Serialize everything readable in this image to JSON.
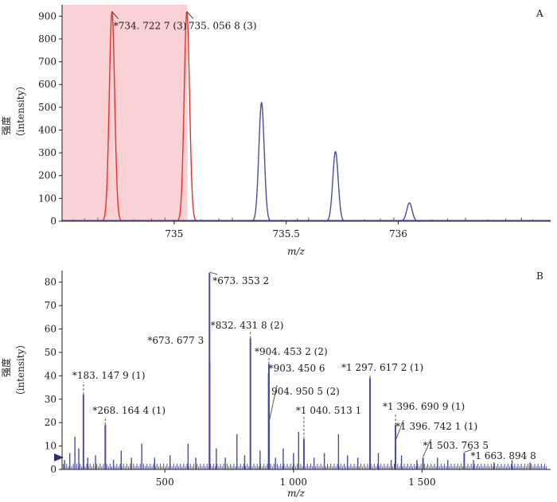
{
  "chart_data": [
    {
      "type": "line",
      "panel_label": "A",
      "xlabel": "m/z",
      "ylabel": [
        "强度",
        "（intensity）"
      ],
      "xlim": [
        734.5,
        736.68
      ],
      "ylim": [
        0,
        950
      ],
      "x_ticks": [
        735,
        735.5,
        736
      ],
      "x_tick_labels": [
        "735",
        "735.5",
        "736"
      ],
      "y_ticks": [
        0,
        100,
        200,
        300,
        400,
        500,
        600,
        700,
        800,
        900
      ],
      "highlight_range": [
        734.5,
        735.06
      ],
      "colors": {
        "highlight_fill": "#fad2d6",
        "selected": "#e8302a",
        "other": "#4a4c9c"
      },
      "peaks": [
        {
          "mz": 734.7227,
          "intensity": 920,
          "selected": true
        },
        {
          "mz": 735.0568,
          "intensity": 920,
          "selected": true
        },
        {
          "mz": 735.39,
          "intensity": 520,
          "selected": false
        },
        {
          "mz": 735.72,
          "intensity": 305,
          "selected": false
        },
        {
          "mz": 736.05,
          "intensity": 80,
          "selected": false
        }
      ],
      "annotations": [
        {
          "text": "*734. 722 7 (3)",
          "mz": 734.7227
        },
        {
          "text": "735. 056 8 (3)",
          "mz": 735.0568
        }
      ]
    },
    {
      "type": "bar",
      "panel_label": "B",
      "xlabel": "m/z",
      "ylabel": [
        "强度",
        "（intensity）"
      ],
      "xlim": [
        100,
        2000
      ],
      "ylim": [
        0,
        85
      ],
      "x_ticks": [
        500,
        1000,
        1500
      ],
      "x_tick_labels": [
        "500",
        "1 000",
        "1 500"
      ],
      "y_ticks": [
        0,
        10,
        20,
        30,
        40,
        50,
        60,
        70,
        80
      ],
      "colors": {
        "bar": "#4a4c9c"
      },
      "labeled_peaks": [
        {
          "mz": 183.1479,
          "intensity": 32,
          "label": "*183. 147 9 (1)"
        },
        {
          "mz": 268.1644,
          "intensity": 19,
          "label": "*268. 164 4 (1)"
        },
        {
          "mz": 673.3532,
          "intensity": 84,
          "label": "*673. 353 2"
        },
        {
          "mz": 673.6773,
          "intensity": 46,
          "label": "*673. 677 3"
        },
        {
          "mz": 832.4318,
          "intensity": 56,
          "label": "*832. 431 8 (2)"
        },
        {
          "mz": 904.4532,
          "intensity": 45,
          "label": "*904. 453 2 (2)"
        },
        {
          "mz": 903.4506,
          "intensity": 41,
          "label": "*903. 450 6"
        },
        {
          "mz": 904.9505,
          "intensity": 20,
          "label": "904. 950 5 (2)"
        },
        {
          "mz": 1040.5131,
          "intensity": 13,
          "label": "*1 040. 513 1"
        },
        {
          "mz": 1297.6172,
          "intensity": 39,
          "label": "*1 297. 617 2 (1)"
        },
        {
          "mz": 1396.6909,
          "intensity": 19,
          "label": "*1 396. 690 9 (1)"
        },
        {
          "mz": 1396.7421,
          "intensity": 12,
          "label": "*1 396. 742 1 (1)"
        },
        {
          "mz": 1503.7635,
          "intensity": 5,
          "label": "*1 503. 763 5"
        },
        {
          "mz": 1663.8948,
          "intensity": 7,
          "label": "*1 663. 894 8"
        }
      ],
      "other_peaks": [
        {
          "mz": 110,
          "intensity": 4
        },
        {
          "mz": 130,
          "intensity": 7
        },
        {
          "mz": 150,
          "intensity": 14
        },
        {
          "mz": 165,
          "intensity": 9
        },
        {
          "mz": 200,
          "intensity": 5
        },
        {
          "mz": 230,
          "intensity": 6
        },
        {
          "mz": 300,
          "intensity": 4
        },
        {
          "mz": 330,
          "intensity": 8
        },
        {
          "mz": 370,
          "intensity": 5
        },
        {
          "mz": 410,
          "intensity": 11
        },
        {
          "mz": 460,
          "intensity": 5
        },
        {
          "mz": 520,
          "intensity": 6
        },
        {
          "mz": 590,
          "intensity": 11
        },
        {
          "mz": 620,
          "intensity": 5
        },
        {
          "mz": 700,
          "intensity": 9
        },
        {
          "mz": 735,
          "intensity": 5
        },
        {
          "mz": 780,
          "intensity": 15
        },
        {
          "mz": 810,
          "intensity": 6
        },
        {
          "mz": 870,
          "intensity": 8
        },
        {
          "mz": 930,
          "intensity": 5
        },
        {
          "mz": 960,
          "intensity": 9
        },
        {
          "mz": 1000,
          "intensity": 7
        },
        {
          "mz": 1020,
          "intensity": 16
        },
        {
          "mz": 1080,
          "intensity": 5
        },
        {
          "mz": 1120,
          "intensity": 7
        },
        {
          "mz": 1175,
          "intensity": 15
        },
        {
          "mz": 1210,
          "intensity": 6
        },
        {
          "mz": 1250,
          "intensity": 5
        },
        {
          "mz": 1330,
          "intensity": 7
        },
        {
          "mz": 1380,
          "intensity": 4
        },
        {
          "mz": 1420,
          "intensity": 6
        },
        {
          "mz": 1480,
          "intensity": 4
        },
        {
          "mz": 1560,
          "intensity": 5
        },
        {
          "mz": 1600,
          "intensity": 4
        },
        {
          "mz": 1700,
          "intensity": 4
        },
        {
          "mz": 1780,
          "intensity": 3
        },
        {
          "mz": 1850,
          "intensity": 4
        },
        {
          "mz": 1920,
          "intensity": 3
        }
      ]
    }
  ]
}
